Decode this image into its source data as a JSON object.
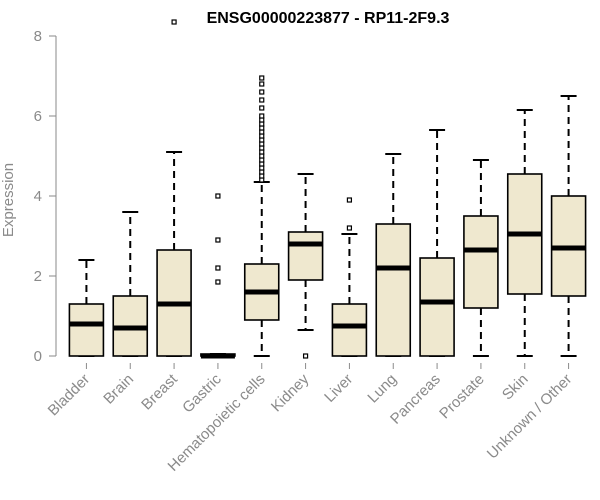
{
  "chart_data": {
    "type": "boxplot",
    "title": "ENSG00000223877 - RP11-2F9.3",
    "xlabel": "",
    "ylabel": "Expression",
    "ylim": [
      0,
      8.4
    ],
    "yticks": [
      0,
      2,
      4,
      6,
      8
    ],
    "grid": false,
    "legend": "none",
    "colors": {
      "box_fill": "#efe8cf",
      "box_stroke": "#000000",
      "median": "#000000",
      "axis": "#8a8a8a",
      "label": "#8a8a8a"
    },
    "categories": [
      "Bladder",
      "Brain",
      "Breast",
      "Gastric",
      "Hematopoietic cells",
      "Kidney",
      "Liver",
      "Lung",
      "Pancreas",
      "Prostate",
      "Skin",
      "Unknown / Other"
    ],
    "boxes": [
      {
        "min": 0,
        "q1": 0,
        "median": 0.8,
        "q3": 1.3,
        "max": 2.4,
        "outliers": []
      },
      {
        "min": 0,
        "q1": 0,
        "median": 0.7,
        "q3": 1.5,
        "max": 3.6,
        "outliers": []
      },
      {
        "min": 0,
        "q1": 0,
        "median": 1.3,
        "q3": 2.65,
        "max": 5.1,
        "outliers": [
          8.35
        ]
      },
      {
        "min": 0,
        "q1": 0,
        "median": 0,
        "q3": 0.05,
        "max": 0.05,
        "outliers": [
          4.0,
          2.9,
          2.2,
          1.85
        ]
      },
      {
        "min": 0,
        "q1": 0.9,
        "median": 1.6,
        "q3": 2.3,
        "max": 4.35,
        "outliers": [
          4.4,
          4.5,
          4.6,
          4.7,
          4.8,
          4.9,
          5.0,
          5.1,
          5.2,
          5.3,
          5.4,
          5.5,
          5.6,
          5.7,
          5.8,
          5.9,
          6.0,
          6.2,
          6.4,
          6.6,
          6.8,
          6.95
        ]
      },
      {
        "min": 0.65,
        "q1": 1.9,
        "median": 2.8,
        "q3": 3.1,
        "max": 4.55,
        "outliers": [
          0.0
        ]
      },
      {
        "min": 0,
        "q1": 0,
        "median": 0.75,
        "q3": 1.3,
        "max": 3.05,
        "outliers": [
          3.9,
          3.2
        ]
      },
      {
        "min": 0,
        "q1": 0,
        "median": 2.2,
        "q3": 3.3,
        "max": 5.05,
        "outliers": []
      },
      {
        "min": 0,
        "q1": 0,
        "median": 1.35,
        "q3": 2.45,
        "max": 5.65,
        "outliers": []
      },
      {
        "min": 0,
        "q1": 1.2,
        "median": 2.65,
        "q3": 3.5,
        "max": 4.9,
        "outliers": []
      },
      {
        "min": 0,
        "q1": 1.55,
        "median": 3.05,
        "q3": 4.55,
        "max": 6.15,
        "outliers": []
      },
      {
        "min": 0,
        "q1": 1.5,
        "median": 2.7,
        "q3": 4.0,
        "max": 6.5,
        "outliers": []
      }
    ]
  }
}
